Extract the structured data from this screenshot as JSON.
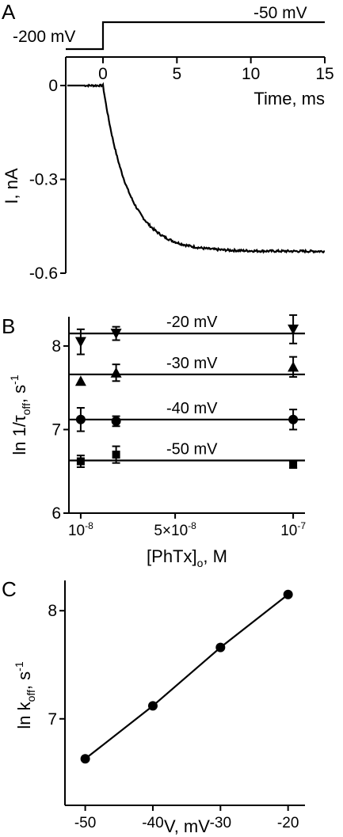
{
  "chart_data": [
    {
      "panel": "A",
      "type": "line",
      "protocol": {
        "hold_label": "-200 mV",
        "step_label": "-50 mV",
        "hold_mV": -200,
        "step_mV": -50,
        "step_time_ms": 0
      },
      "xlabel": "Time, ms",
      "ylabel": "I, nA",
      "xlim": [
        -1.3,
        15
      ],
      "ylim": [
        -0.6,
        0.02
      ],
      "xticks": [
        0,
        5,
        10,
        15
      ],
      "xtick_labels": [
        "0",
        "5",
        "10",
        "15"
      ],
      "yticks": [
        0,
        -0.3,
        -0.6
      ],
      "ytick_labels": [
        "0",
        "-0.3",
        "-0.6"
      ],
      "series": [
        {
          "description": "current trace; flat at 0 before step, exponential decay to steady state after",
          "baseline_nA": 0,
          "steady_state_nA": -0.53,
          "tau_ms": 1.7
        }
      ]
    },
    {
      "panel": "B",
      "type": "scatter",
      "xlabel_main": "[PhTx]",
      "xlabel_sub": "o",
      "xlabel_unit": ", M",
      "ylabel_prefix": "ln 1/τ",
      "ylabel_sub": "off",
      "ylabel_unit": ", s",
      "ylabel_sup": "-1",
      "xlim": [
        5e-09,
        1.05e-07
      ],
      "ylim": [
        6,
        8.35
      ],
      "xticks": [
        1e-08,
        5e-08,
        1e-07
      ],
      "xtick_labels": [
        "10",
        "5×10",
        "10"
      ],
      "xtick_exps": [
        "-8",
        "-8",
        "-7"
      ],
      "yticks": [
        6,
        7,
        8
      ],
      "ytick_labels": [
        "6",
        "7",
        "8"
      ],
      "x": [
        1e-08,
        2.5e-08,
        1e-07
      ],
      "series": [
        {
          "name": "-20 mV",
          "marker": "triangle-down",
          "values": [
            8.05,
            8.15,
            8.2
          ],
          "err": [
            0.15,
            0.08,
            0.17
          ],
          "fit": 8.15
        },
        {
          "name": "-30 mV",
          "marker": "triangle-up",
          "values": [
            7.58,
            7.68,
            7.75
          ],
          "err": [
            0.0,
            0.1,
            0.12
          ],
          "fit": 7.66
        },
        {
          "name": "-40 mV",
          "marker": "circle",
          "values": [
            7.12,
            7.1,
            7.12
          ],
          "err": [
            0.14,
            0.06,
            0.12
          ],
          "fit": 7.12
        },
        {
          "name": "-50 mV",
          "marker": "square",
          "values": [
            6.62,
            6.7,
            6.58
          ],
          "err": [
            0.07,
            0.1,
            0.04
          ],
          "fit": 6.63
        }
      ]
    },
    {
      "panel": "C",
      "type": "line",
      "xlabel": "V, mV",
      "ylabel_prefix": "ln k",
      "ylabel_sub": "off",
      "ylabel_unit": ", s",
      "ylabel_sup": "-1",
      "xlim": [
        -53,
        -17.5
      ],
      "ylim": [
        6.2,
        8.28
      ],
      "xticks": [
        -50,
        -40,
        -30,
        -20
      ],
      "xtick_labels": [
        "-50",
        "-40",
        "-30",
        "-20"
      ],
      "yticks": [
        7,
        8
      ],
      "ytick_labels": [
        "7",
        "8"
      ],
      "series": [
        {
          "x": [
            -50,
            -40,
            -30,
            -20
          ],
          "values": [
            6.63,
            7.12,
            7.66,
            8.15
          ]
        }
      ]
    }
  ],
  "panels": {
    "A": "A",
    "B": "B",
    "C": "C"
  }
}
